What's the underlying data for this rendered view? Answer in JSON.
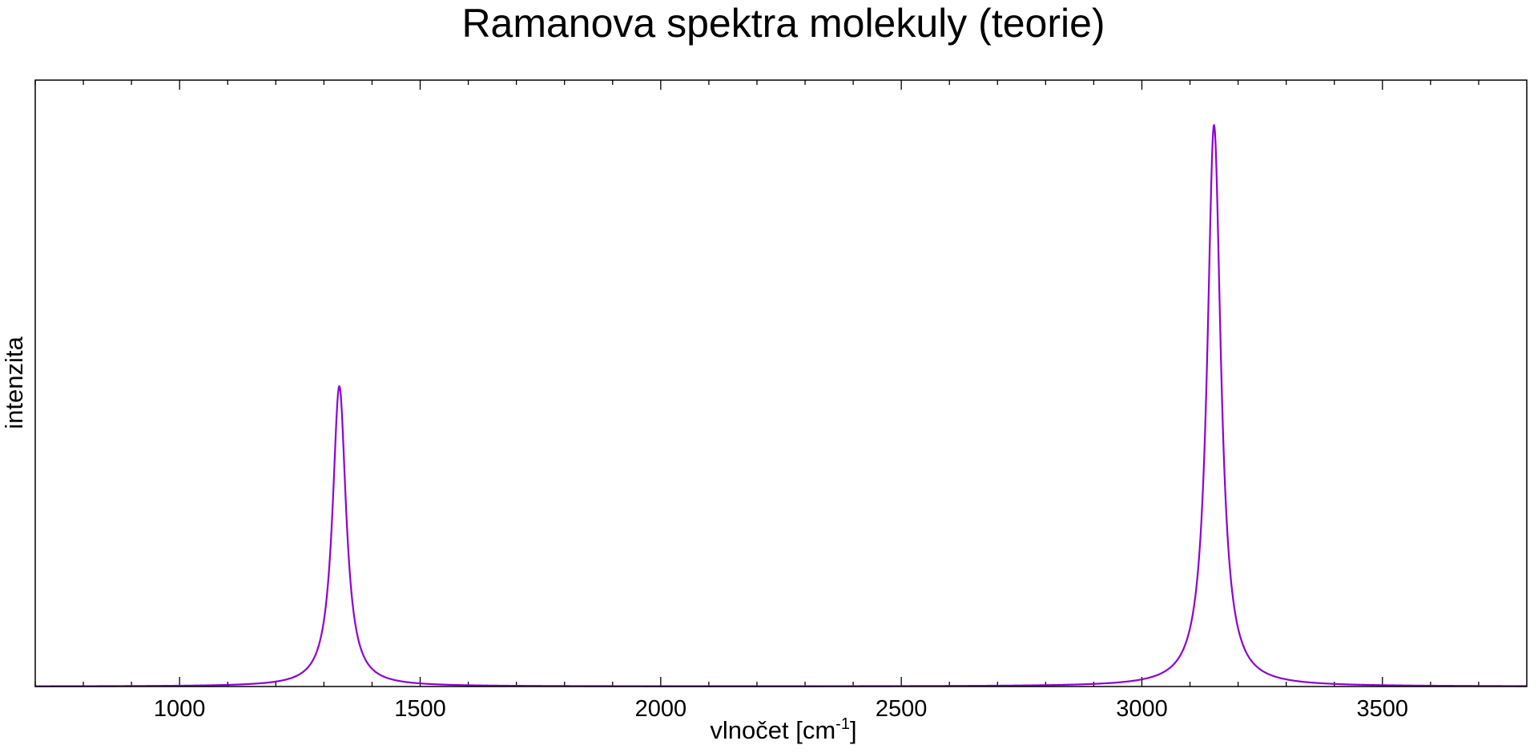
{
  "chart_data": {
    "type": "line",
    "title": "Ramanova spektra molekuly (teorie)",
    "xlabel_main": "vlnočet [cm",
    "xlabel_sup": "-1",
    "xlabel_tail": "]",
    "ylabel": "intenzita",
    "xlim": [
      700,
      3800
    ],
    "ylim": [
      0,
      1.08
    ],
    "x_ticks": [
      1000,
      1500,
      2000,
      2500,
      3000,
      3500
    ],
    "x_minor_step": 100,
    "grid": false,
    "y_tick_labels": false,
    "series": [
      {
        "color": "#8e00d6",
        "peaks": [
          {
            "center": 1332,
            "intensity": 0.535,
            "hwhm": 17
          },
          {
            "center": 3150,
            "intensity": 1.0,
            "hwhm": 17
          }
        ]
      }
    ]
  }
}
